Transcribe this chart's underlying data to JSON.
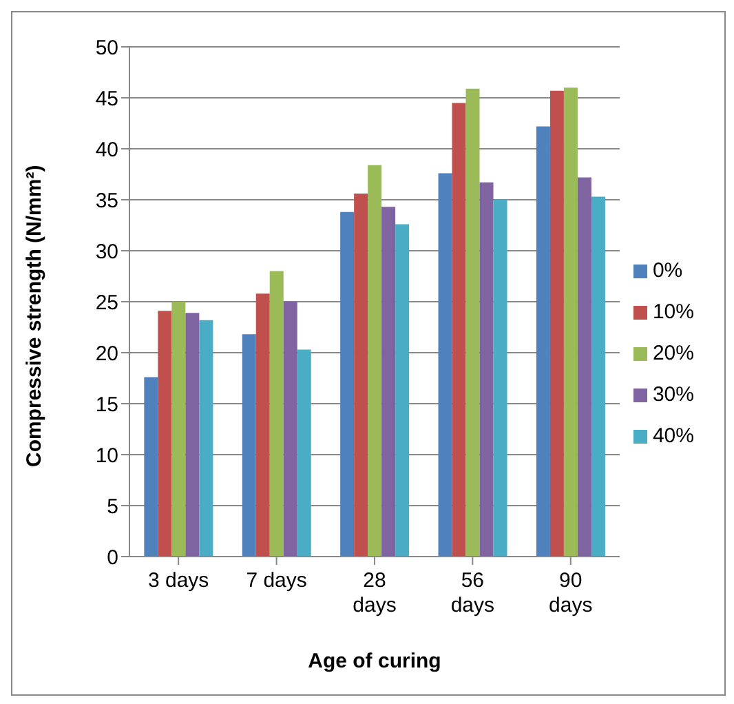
{
  "chart_data": {
    "type": "bar",
    "xlabel": "Age of curing",
    "ylabel": "Compressive strength (N/mm²)",
    "categories": [
      "3 days",
      "7 days",
      "28 days",
      "56 days",
      "90 days"
    ],
    "series": [
      {
        "name": "0%",
        "color": "#4f81bd",
        "values": [
          17.6,
          21.8,
          33.8,
          37.6,
          42.2
        ]
      },
      {
        "name": "10%",
        "color": "#c0504d",
        "values": [
          24.1,
          25.8,
          35.6,
          44.5,
          45.7
        ]
      },
      {
        "name": "20%",
        "color": "#9bbb59",
        "values": [
          25,
          28,
          38.4,
          45.9,
          46
        ]
      },
      {
        "name": "30%",
        "color": "#8064a2",
        "values": [
          23.9,
          25,
          34.3,
          36.7,
          37.2
        ]
      },
      {
        "name": "40%",
        "color": "#4bacc6",
        "values": [
          23.2,
          20.3,
          32.6,
          35,
          35.3
        ]
      }
    ],
    "ylim": [
      0,
      50
    ],
    "yticks": [
      0,
      5,
      10,
      15,
      20,
      25,
      30,
      35,
      40,
      45,
      50
    ],
    "grid": "y",
    "legend": "right"
  }
}
